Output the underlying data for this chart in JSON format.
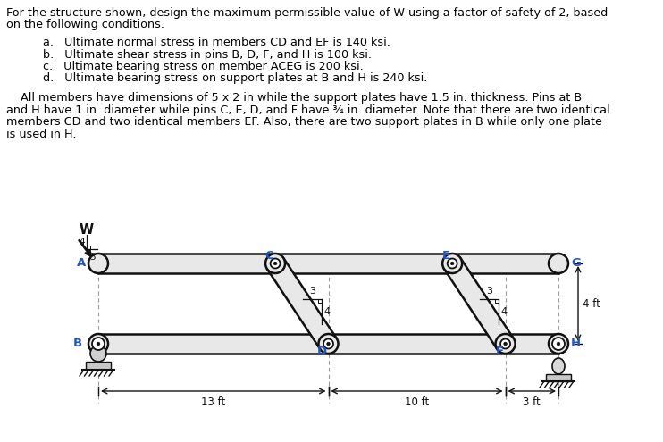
{
  "title_line1": "For the structure shown, design the maximum permissible value of W using a factor of safety of 2, based",
  "title_line2": "on the following conditions.",
  "items": [
    "a.   Ultimate normal stress in members CD and EF is 140 ksi.",
    "b.   Ultimate shear stress in pins B, D, F, and H is 100 ksi.",
    "c.   Ultimate bearing stress on member ACEG is 200 ksi.",
    "d.   Ultimate bearing stress on support plates at B and H is 240 ksi."
  ],
  "para_line1": "    All members have dimensions of 5 x 2 in while the support plates have 1.5 in. thickness. Pins at B",
  "para_line2": "and H have 1 in. diameter while pins C, E, D, and F have ¾ in. diameter. Note that there are two identical",
  "para_line3": "members CD and two identical members EF. Also, there are two support plates in B while only one plate",
  "para_line4": "is used in H.",
  "bg_color": "#ffffff",
  "text_color": "#000000",
  "blue_color": "#2255bb",
  "gray_member": "#e8e8e8",
  "dark_outline": "#111111",
  "font_size_text": 9.2
}
